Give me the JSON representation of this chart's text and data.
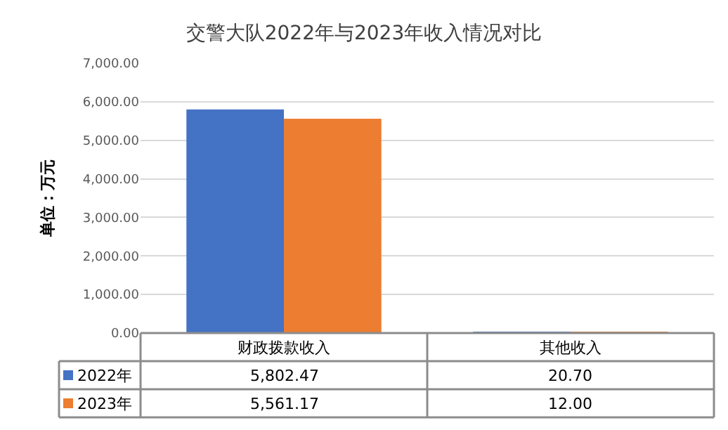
{
  "chart_data": {
    "type": "bar",
    "title": "交警大队2022年与2023年收入情况对比",
    "ylabel": "单位：万元",
    "categories": [
      "财政拨款收入",
      "其他收入"
    ],
    "series": [
      {
        "name": "2022年",
        "color": "#4472c4",
        "values": [
          5802.47,
          20.7
        ],
        "value_labels": [
          "5,802.47",
          "20.70"
        ]
      },
      {
        "name": "2023年",
        "color": "#ed7d31",
        "values": [
          5561.17,
          12.0
        ],
        "value_labels": [
          "5,561.17",
          "12.00"
        ]
      }
    ],
    "ylim": [
      0,
      7000
    ],
    "yticks": [
      {
        "value": 0,
        "label": "0.00"
      },
      {
        "value": 1000,
        "label": "1,000.00"
      },
      {
        "value": 2000,
        "label": "2,000.00"
      },
      {
        "value": 3000,
        "label": "3,000.00"
      },
      {
        "value": 4000,
        "label": "4,000.00"
      },
      {
        "value": 5000,
        "label": "5,000.00"
      },
      {
        "value": 6000,
        "label": "6,000.00"
      },
      {
        "value": 7000,
        "label": "7,000.00"
      }
    ],
    "grid": "y",
    "legend": "bottom left"
  }
}
